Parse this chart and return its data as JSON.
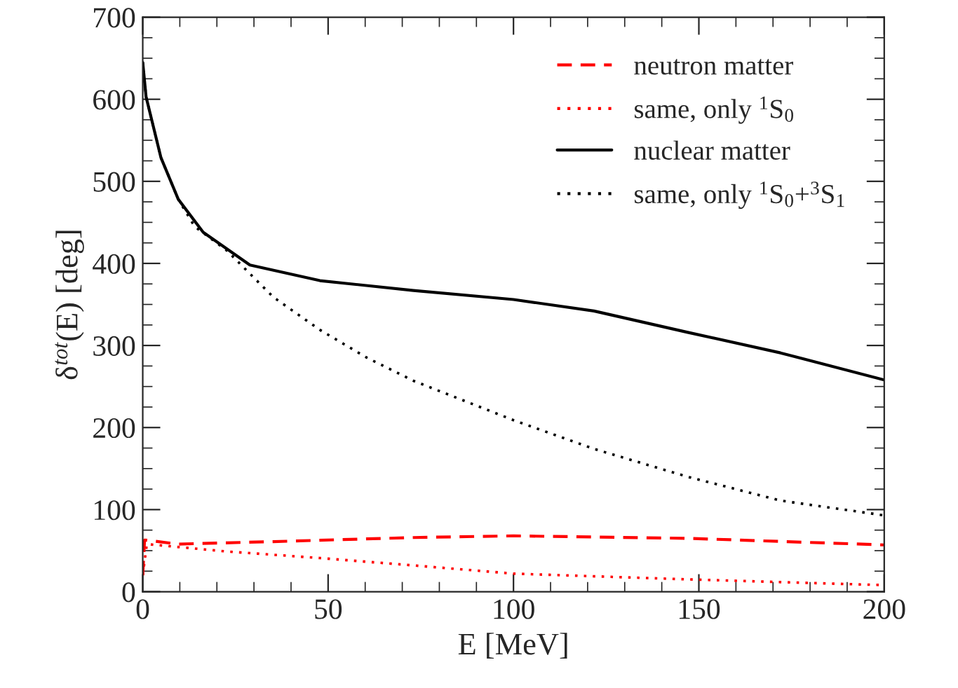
{
  "chart_data": {
    "type": "line",
    "xlabel": "E [MeV]",
    "ylabel": "δ$^{tot}$(E) [deg]",
    "xlim": [
      0,
      200
    ],
    "ylim": [
      0,
      700
    ],
    "xticks": [
      0,
      50,
      100,
      150,
      200
    ],
    "yticks": [
      0,
      100,
      200,
      300,
      400,
      500,
      600,
      700
    ],
    "grid": false,
    "legend": "top right",
    "series": [
      {
        "name": "neutron matter",
        "color": "#ff0000",
        "line_style": "dashed",
        "x": [
          0,
          0.5,
          9.6,
          35.2,
          73,
          100,
          147,
          200
        ],
        "values": [
          20,
          63,
          58,
          61,
          66,
          68,
          65,
          57
        ]
      },
      {
        "name": "same, only $^{1}$S$_{0}$",
        "color": "#ff0000",
        "line_style": "dotted",
        "x": [
          0,
          1.1,
          22.6,
          47.8,
          73,
          100,
          147,
          200
        ],
        "values": [
          20,
          58,
          49,
          41,
          32,
          22,
          15,
          8
        ]
      },
      {
        "name": "nuclear matter",
        "color": "#000000",
        "line_style": "solid",
        "x": [
          0,
          0.9,
          4.9,
          9.6,
          16.3,
          28.9,
          47.8,
          73,
          100,
          121.7,
          147,
          172,
          200
        ],
        "values": [
          645,
          603,
          529,
          478,
          438,
          398,
          379,
          367,
          356,
          342,
          316,
          291,
          258
        ]
      },
      {
        "name": "same, only $^{1}$S$_{0}$+$^{3}$S$_{1}$",
        "color": "#000000",
        "line_style": "dotted",
        "x": [
          0,
          0.9,
          4.9,
          9.6,
          14,
          22.6,
          35.2,
          47.8,
          60.5,
          73,
          100,
          121.7,
          147,
          172,
          200
        ],
        "values": [
          645,
          603,
          529,
          478,
          445,
          416,
          359,
          319,
          285,
          257,
          209,
          174,
          140,
          111,
          93
        ]
      }
    ]
  }
}
